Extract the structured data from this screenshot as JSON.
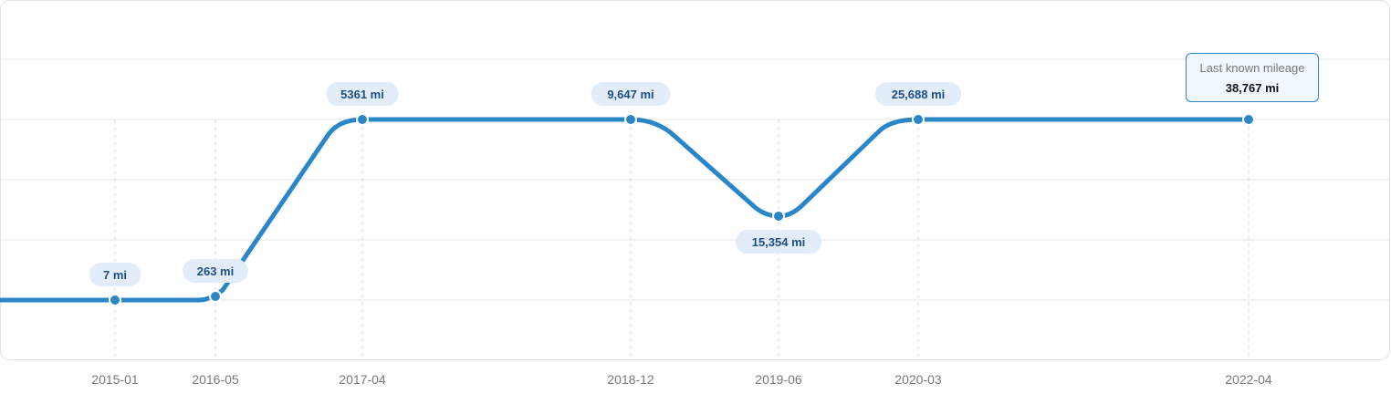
{
  "chart_data": {
    "type": "line",
    "x": [
      "2015-01",
      "2016-05",
      "2017-04",
      "2018-12",
      "2019-06",
      "2020-03",
      "2022-04"
    ],
    "values": [
      7,
      263,
      5361,
      9647,
      15354,
      25688,
      38767
    ],
    "point_labels": [
      "7 mi",
      "263 mi",
      "5361 mi",
      "9,647 mi",
      "15,354 mi",
      "25,688 mi",
      "38,767 mi"
    ],
    "grid": true,
    "color": "#2b86c8"
  },
  "tooltip": {
    "title": "Last known mileage",
    "value": "38,767 mi"
  }
}
